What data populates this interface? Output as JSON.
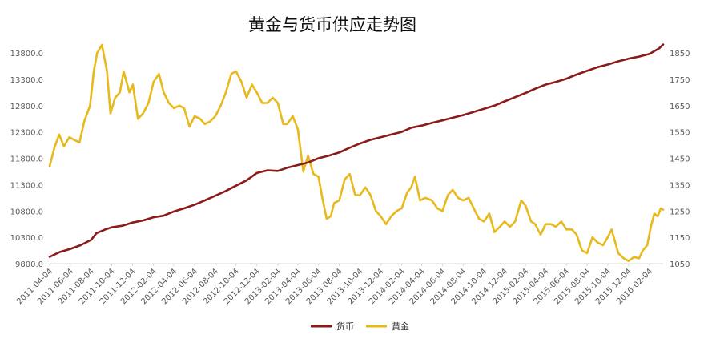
{
  "colors": {
    "currency": "#8B1A1A",
    "gold": "#E8B91C",
    "tick_text": "#595959",
    "axis": "#d9d9d9"
  },
  "chart_data": {
    "type": "line",
    "title": "黄金与货币供应走势图",
    "x": [
      "2011-04-04",
      "2011-06-04",
      "2011-08-04",
      "2011-10-04",
      "2011-12-04",
      "2012-02-04",
      "2012-04-04",
      "2012-06-04",
      "2012-08-04",
      "2012-10-04",
      "2012-12-04",
      "2013-02-04",
      "2013-04-04",
      "2013-06-04",
      "2013-08-04",
      "2013-10-04",
      "2013-12-04",
      "2014-02-04",
      "2014-04-04",
      "2014-06-04",
      "2014-08-04",
      "2014-10-04",
      "2014-12-04",
      "2015-02-04",
      "2015-04-04",
      "2015-06-04",
      "2015-08-04",
      "2015-10-04",
      "2015-12-04",
      "2016-02-04"
    ],
    "x_range": [
      "2011-04-04",
      "2016-03-15"
    ],
    "y_left": {
      "ticks": [
        "9800.0",
        "10300.0",
        "10800.0",
        "11300.0",
        "11800.0",
        "12300.0",
        "12800.0",
        "13300.0",
        "13800.0"
      ],
      "ylim": [
        9800,
        13800
      ]
    },
    "y_right": {
      "ticks": [
        "1050",
        "1150",
        "1250",
        "1350",
        "1450",
        "1550",
        "1650",
        "1750",
        "1850"
      ],
      "ylim": [
        1050,
        1850
      ]
    },
    "series": [
      {
        "name": "货币",
        "axis": "left",
        "color": "#8B1A1A",
        "points": [
          [
            "2011-04-04",
            9930
          ],
          [
            "2011-05-04",
            10020
          ],
          [
            "2011-06-04",
            10080
          ],
          [
            "2011-07-04",
            10150
          ],
          [
            "2011-08-04",
            10250
          ],
          [
            "2011-08-20",
            10380
          ],
          [
            "2011-09-15",
            10450
          ],
          [
            "2011-10-04",
            10490
          ],
          [
            "2011-11-04",
            10520
          ],
          [
            "2011-12-04",
            10580
          ],
          [
            "2012-01-04",
            10620
          ],
          [
            "2012-02-04",
            10680
          ],
          [
            "2012-03-04",
            10710
          ],
          [
            "2012-04-04",
            10790
          ],
          [
            "2012-05-04",
            10850
          ],
          [
            "2012-06-04",
            10920
          ],
          [
            "2012-07-04",
            11000
          ],
          [
            "2012-08-04",
            11090
          ],
          [
            "2012-09-04",
            11180
          ],
          [
            "2012-10-04",
            11280
          ],
          [
            "2012-11-04",
            11380
          ],
          [
            "2012-12-04",
            11520
          ],
          [
            "2013-01-04",
            11570
          ],
          [
            "2013-02-04",
            11560
          ],
          [
            "2013-03-04",
            11620
          ],
          [
            "2013-04-04",
            11670
          ],
          [
            "2013-05-04",
            11720
          ],
          [
            "2013-06-04",
            11800
          ],
          [
            "2013-07-04",
            11850
          ],
          [
            "2013-08-04",
            11910
          ],
          [
            "2013-09-04",
            12000
          ],
          [
            "2013-10-04",
            12080
          ],
          [
            "2013-11-04",
            12150
          ],
          [
            "2013-12-04",
            12200
          ],
          [
            "2014-01-04",
            12250
          ],
          [
            "2014-02-04",
            12300
          ],
          [
            "2014-03-04",
            12380
          ],
          [
            "2014-04-04",
            12420
          ],
          [
            "2014-05-04",
            12470
          ],
          [
            "2014-06-04",
            12520
          ],
          [
            "2014-07-04",
            12570
          ],
          [
            "2014-08-04",
            12620
          ],
          [
            "2014-09-04",
            12680
          ],
          [
            "2014-10-04",
            12740
          ],
          [
            "2014-11-04",
            12800
          ],
          [
            "2014-12-04",
            12880
          ],
          [
            "2015-01-04",
            12960
          ],
          [
            "2015-02-04",
            13040
          ],
          [
            "2015-03-04",
            13120
          ],
          [
            "2015-04-04",
            13200
          ],
          [
            "2015-05-04",
            13250
          ],
          [
            "2015-06-04",
            13310
          ],
          [
            "2015-07-04",
            13390
          ],
          [
            "2015-08-04",
            13460
          ],
          [
            "2015-09-04",
            13530
          ],
          [
            "2015-10-04",
            13580
          ],
          [
            "2015-11-04",
            13640
          ],
          [
            "2015-12-04",
            13690
          ],
          [
            "2016-01-04",
            13730
          ],
          [
            "2016-02-04",
            13780
          ],
          [
            "2016-03-04",
            13890
          ],
          [
            "2016-03-15",
            13960
          ]
        ]
      },
      {
        "name": "黄金",
        "axis": "right",
        "color": "#E8B91C",
        "points": [
          [
            "2011-04-04",
            1420
          ],
          [
            "2011-04-18",
            1490
          ],
          [
            "2011-05-02",
            1540
          ],
          [
            "2011-05-16",
            1495
          ],
          [
            "2011-06-01",
            1530
          ],
          [
            "2011-06-15",
            1520
          ],
          [
            "2011-07-01",
            1510
          ],
          [
            "2011-07-15",
            1590
          ],
          [
            "2011-08-01",
            1650
          ],
          [
            "2011-08-12",
            1780
          ],
          [
            "2011-08-22",
            1850
          ],
          [
            "2011-09-05",
            1880
          ],
          [
            "2011-09-20",
            1780
          ],
          [
            "2011-09-30",
            1620
          ],
          [
            "2011-10-14",
            1680
          ],
          [
            "2011-10-28",
            1700
          ],
          [
            "2011-11-08",
            1780
          ],
          [
            "2011-11-25",
            1700
          ],
          [
            "2011-12-05",
            1730
          ],
          [
            "2011-12-20",
            1600
          ],
          [
            "2012-01-04",
            1620
          ],
          [
            "2012-01-20",
            1660
          ],
          [
            "2012-02-04",
            1740
          ],
          [
            "2012-02-20",
            1770
          ],
          [
            "2012-03-05",
            1700
          ],
          [
            "2012-03-20",
            1660
          ],
          [
            "2012-04-04",
            1640
          ],
          [
            "2012-04-20",
            1650
          ],
          [
            "2012-05-04",
            1640
          ],
          [
            "2012-05-20",
            1570
          ],
          [
            "2012-06-04",
            1610
          ],
          [
            "2012-06-20",
            1600
          ],
          [
            "2012-07-04",
            1580
          ],
          [
            "2012-07-20",
            1590
          ],
          [
            "2012-08-04",
            1610
          ],
          [
            "2012-08-20",
            1650
          ],
          [
            "2012-09-04",
            1700
          ],
          [
            "2012-09-20",
            1770
          ],
          [
            "2012-10-04",
            1780
          ],
          [
            "2012-10-20",
            1740
          ],
          [
            "2012-11-04",
            1680
          ],
          [
            "2012-11-20",
            1730
          ],
          [
            "2012-12-04",
            1700
          ],
          [
            "2012-12-20",
            1660
          ],
          [
            "2013-01-04",
            1660
          ],
          [
            "2013-01-20",
            1680
          ],
          [
            "2013-02-04",
            1660
          ],
          [
            "2013-02-20",
            1580
          ],
          [
            "2013-03-04",
            1580
          ],
          [
            "2013-03-20",
            1610
          ],
          [
            "2013-04-04",
            1560
          ],
          [
            "2013-04-12",
            1480
          ],
          [
            "2013-04-20",
            1400
          ],
          [
            "2013-05-04",
            1460
          ],
          [
            "2013-05-20",
            1390
          ],
          [
            "2013-06-04",
            1380
          ],
          [
            "2013-06-15",
            1300
          ],
          [
            "2013-06-28",
            1220
          ],
          [
            "2013-07-10",
            1230
          ],
          [
            "2013-07-20",
            1280
          ],
          [
            "2013-08-04",
            1290
          ],
          [
            "2013-08-20",
            1370
          ],
          [
            "2013-09-04",
            1390
          ],
          [
            "2013-09-20",
            1310
          ],
          [
            "2013-10-04",
            1310
          ],
          [
            "2013-10-20",
            1340
          ],
          [
            "2013-11-04",
            1310
          ],
          [
            "2013-11-20",
            1250
          ],
          [
            "2013-12-04",
            1230
          ],
          [
            "2013-12-20",
            1200
          ],
          [
            "2014-01-04",
            1230
          ],
          [
            "2014-01-20",
            1250
          ],
          [
            "2014-02-04",
            1260
          ],
          [
            "2014-02-20",
            1320
          ],
          [
            "2014-03-04",
            1340
          ],
          [
            "2014-03-15",
            1380
          ],
          [
            "2014-03-30",
            1290
          ],
          [
            "2014-04-15",
            1300
          ],
          [
            "2014-05-04",
            1290
          ],
          [
            "2014-05-20",
            1260
          ],
          [
            "2014-06-04",
            1250
          ],
          [
            "2014-06-20",
            1310
          ],
          [
            "2014-07-04",
            1330
          ],
          [
            "2014-07-20",
            1300
          ],
          [
            "2014-08-04",
            1290
          ],
          [
            "2014-08-20",
            1300
          ],
          [
            "2014-09-04",
            1260
          ],
          [
            "2014-09-20",
            1220
          ],
          [
            "2014-10-04",
            1210
          ],
          [
            "2014-10-20",
            1240
          ],
          [
            "2014-11-04",
            1170
          ],
          [
            "2014-11-20",
            1190
          ],
          [
            "2014-12-04",
            1210
          ],
          [
            "2014-12-20",
            1190
          ],
          [
            "2015-01-04",
            1210
          ],
          [
            "2015-01-22",
            1290
          ],
          [
            "2015-02-04",
            1270
          ],
          [
            "2015-02-20",
            1210
          ],
          [
            "2015-03-04",
            1200
          ],
          [
            "2015-03-20",
            1160
          ],
          [
            "2015-04-04",
            1200
          ],
          [
            "2015-04-20",
            1200
          ],
          [
            "2015-05-04",
            1190
          ],
          [
            "2015-05-20",
            1210
          ],
          [
            "2015-06-04",
            1180
          ],
          [
            "2015-06-20",
            1180
          ],
          [
            "2015-07-04",
            1160
          ],
          [
            "2015-07-20",
            1100
          ],
          [
            "2015-08-04",
            1090
          ],
          [
            "2015-08-20",
            1150
          ],
          [
            "2015-09-04",
            1130
          ],
          [
            "2015-09-20",
            1120
          ],
          [
            "2015-10-04",
            1150
          ],
          [
            "2015-10-15",
            1180
          ],
          [
            "2015-11-04",
            1090
          ],
          [
            "2015-11-20",
            1070
          ],
          [
            "2015-12-04",
            1060
          ],
          [
            "2015-12-20",
            1075
          ],
          [
            "2016-01-04",
            1070
          ],
          [
            "2016-01-15",
            1100
          ],
          [
            "2016-01-28",
            1120
          ],
          [
            "2016-02-08",
            1190
          ],
          [
            "2016-02-18",
            1240
          ],
          [
            "2016-02-28",
            1230
          ],
          [
            "2016-03-08",
            1260
          ],
          [
            "2016-03-15",
            1255
          ]
        ]
      }
    ],
    "legend": {
      "position": "bottom",
      "entries": [
        "货币",
        "黄金"
      ]
    },
    "grid": false
  }
}
